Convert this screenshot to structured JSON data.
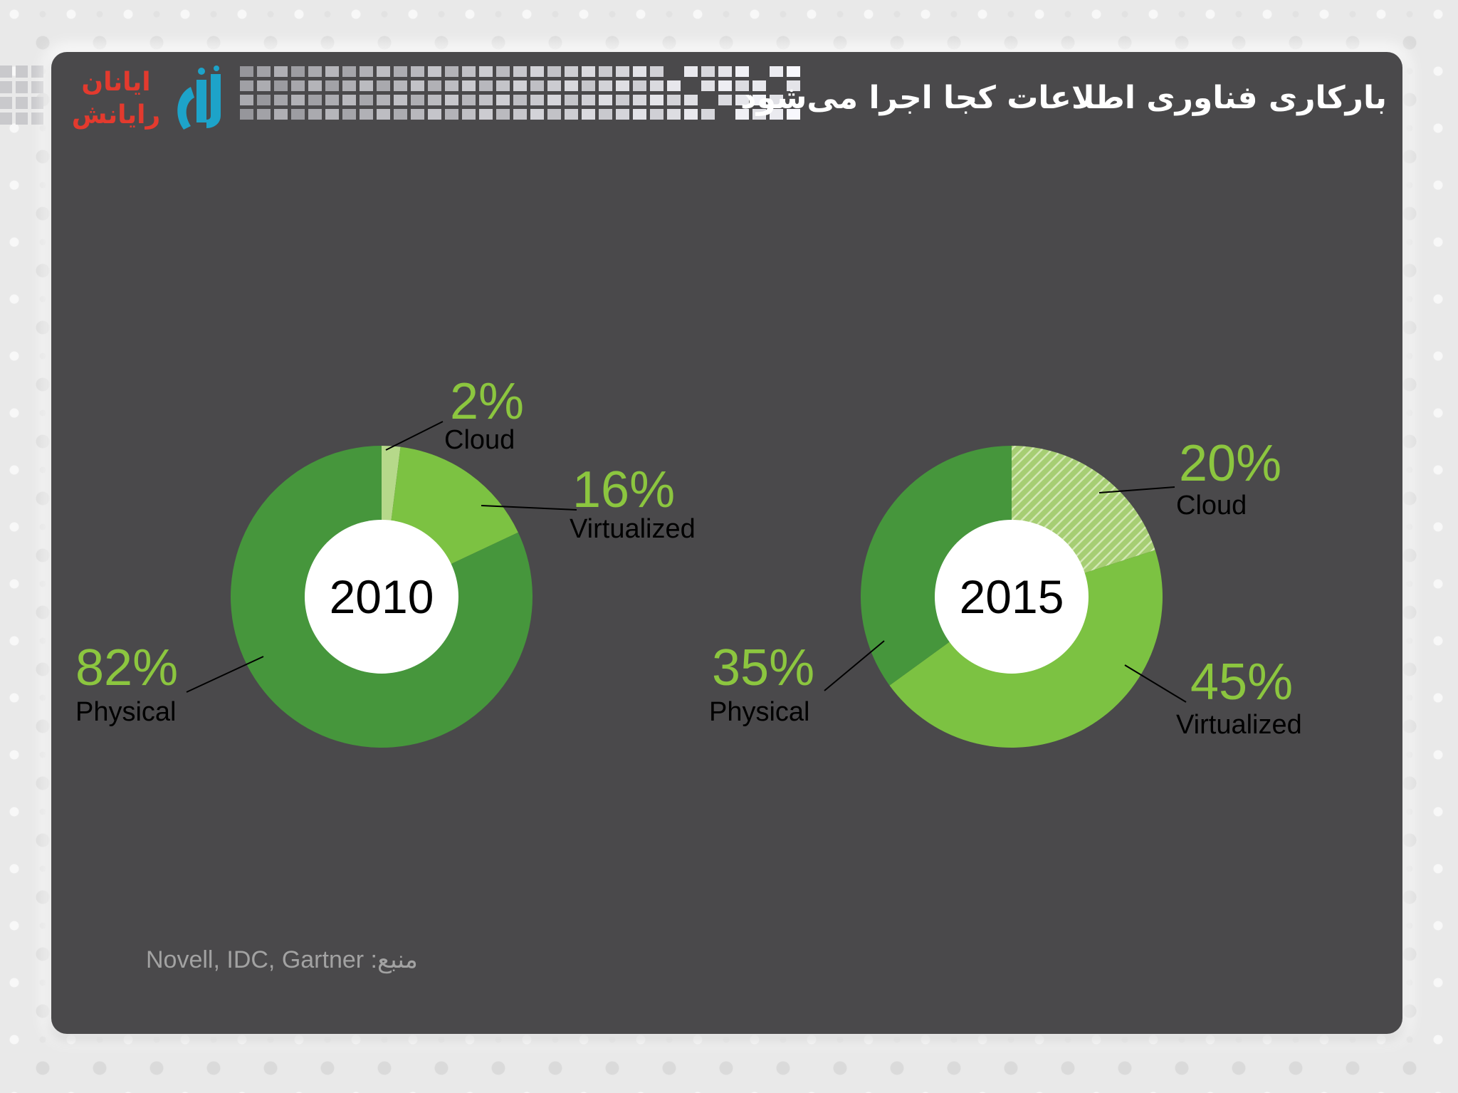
{
  "header": {
    "title": "بارکاری فناوری اطلاعات کجا اجرا می‌شود",
    "logo": {
      "line1": "ایانان",
      "line2": "رایانش",
      "mark": "آیاناز"
    }
  },
  "source_text": "Novell, IDC, Gartner :منبع",
  "colors": {
    "physical": "#46963c",
    "virtualized": "#7cc242",
    "cloud": "#b6d98a",
    "label_green": "#8cc63f",
    "label_dark": "#000000",
    "slide_bg": "#4a494b"
  },
  "chart_data": [
    {
      "type": "pie",
      "center_label": "2010",
      "slices": [
        {
          "label": "Cloud",
          "value": 2,
          "value_text": "2%"
        },
        {
          "label": "Virtualized",
          "value": 16,
          "value_text": "16%"
        },
        {
          "label": "Physical",
          "value": 82,
          "value_text": "82%"
        }
      ]
    },
    {
      "type": "pie",
      "center_label": "2015",
      "slices": [
        {
          "label": "Cloud",
          "value": 20,
          "value_text": "20%"
        },
        {
          "label": "Virtualized",
          "value": 45,
          "value_text": "45%"
        },
        {
          "label": "Physical",
          "value": 35,
          "value_text": "35%"
        }
      ]
    }
  ]
}
